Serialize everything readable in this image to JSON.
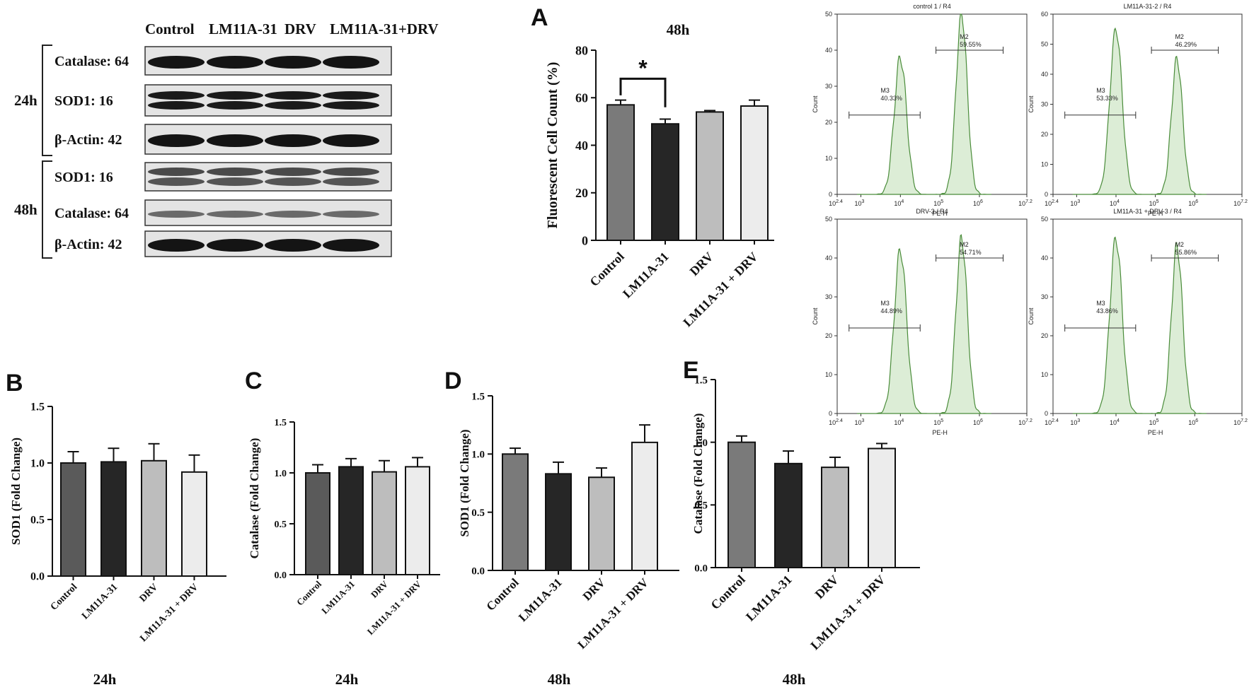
{
  "western_blot": {
    "lanes": [
      "Control",
      "LM11A-31",
      "DRV",
      "LM11A-31+DRV"
    ],
    "groups": [
      {
        "time": "24h",
        "blots": [
          {
            "label": "Catalase: 64",
            "bands": 1
          },
          {
            "label": "SOD1: 16",
            "bands": 2
          },
          {
            "label": "β-Actin: 42",
            "bands": 1
          }
        ]
      },
      {
        "time": "48h",
        "blots": [
          {
            "label": "SOD1: 16",
            "bands": 2
          },
          {
            "label": "Catalase: 64",
            "bands": 1
          },
          {
            "label": "β-Actin: 42",
            "bands": 1
          }
        ]
      }
    ]
  },
  "chart_data": [
    {
      "panel": "A",
      "type": "bar",
      "title": "48h",
      "xlabel": "",
      "ylabel": "Fluorescent Cell Count (%)",
      "categories": [
        "Control",
        "LM11A-31",
        "DRV",
        "LM11A-31 + DRV"
      ],
      "values": [
        57,
        49,
        54,
        56.5
      ],
      "errors": [
        2,
        2,
        0.6,
        2.5
      ],
      "ylim": [
        0,
        80
      ],
      "yticks": [
        0,
        20,
        40,
        60,
        80
      ],
      "tick_labels": [
        "0",
        "20",
        "40",
        "60",
        "80"
      ],
      "significance": {
        "from": 0,
        "to": 1,
        "label": "*"
      },
      "colors": [
        "#7a7a7a",
        "#262626",
        "#bdbdbd",
        "#ececec"
      ],
      "grid": false
    },
    {
      "panel": "B",
      "type": "bar",
      "title": "24h",
      "xlabel": "",
      "ylabel": "SOD1 (Fold Change)",
      "categories": [
        "Control",
        "LM11A-31",
        "DRV",
        "LM11A-31 + DRV"
      ],
      "values": [
        1.0,
        1.01,
        1.02,
        0.92
      ],
      "errors": [
        0.1,
        0.12,
        0.15,
        0.15
      ],
      "ylim": [
        0,
        1.5
      ],
      "yticks": [
        0,
        0.5,
        1.0,
        1.5
      ],
      "tick_labels": [
        "0.0",
        "0.5",
        "1.0",
        "1.5"
      ],
      "colors": [
        "#5a5a5a",
        "#262626",
        "#bdbdbd",
        "#ececec"
      ],
      "grid": false
    },
    {
      "panel": "C",
      "type": "bar",
      "title": "24h",
      "xlabel": "",
      "ylabel": "Catalase (Fold Change)",
      "categories": [
        "Control",
        "LM11A-31",
        "DRV",
        "LM11A-31 + DRV"
      ],
      "values": [
        1.0,
        1.06,
        1.01,
        1.06
      ],
      "errors": [
        0.08,
        0.08,
        0.11,
        0.09
      ],
      "ylim": [
        0,
        1.5
      ],
      "yticks": [
        0,
        0.5,
        1.0,
        1.5
      ],
      "tick_labels": [
        "0.0",
        "0.5",
        "1.0",
        "1.5"
      ],
      "colors": [
        "#5a5a5a",
        "#262626",
        "#bdbdbd",
        "#ececec"
      ],
      "grid": false
    },
    {
      "panel": "D",
      "type": "bar",
      "title": "48h",
      "xlabel": "",
      "ylabel": "SOD1 (Fold Change)",
      "categories": [
        "Control",
        "LM11A-31",
        "DRV",
        "LM11A-31 + DRV"
      ],
      "values": [
        1.0,
        0.83,
        0.8,
        1.1
      ],
      "errors": [
        0.05,
        0.1,
        0.08,
        0.15
      ],
      "ylim": [
        0,
        1.5
      ],
      "yticks": [
        0,
        0.5,
        1.0,
        1.5
      ],
      "tick_labels": [
        "0.0",
        "0.5",
        "1.0",
        "1.5"
      ],
      "colors": [
        "#7a7a7a",
        "#262626",
        "#bdbdbd",
        "#ececec"
      ],
      "grid": false
    },
    {
      "panel": "E",
      "type": "bar",
      "title": "48h",
      "xlabel": "",
      "ylabel": "Catalase (Fold Change)",
      "categories": [
        "Control",
        "LM11A-31",
        "DRV",
        "LM11A-31 + DRV"
      ],
      "values": [
        1.0,
        0.83,
        0.8,
        0.95
      ],
      "errors": [
        0.05,
        0.1,
        0.08,
        0.04
      ],
      "ylim": [
        0,
        1.5
      ],
      "yticks": [
        0,
        0.5,
        1.0,
        1.5
      ],
      "tick_labels": [
        "0.0",
        "0.5",
        "1.0",
        "1.5"
      ],
      "colors": [
        "#7a7a7a",
        "#262626",
        "#bdbdbd",
        "#ececec"
      ],
      "grid": false
    }
  ],
  "flow_cytometry": [
    {
      "title": "control 1 / R4",
      "m3": "40.33%",
      "m2": "59.55%",
      "m3_label": "M3",
      "m2_label": "M2",
      "xlabel": "PE-H",
      "ylabel": "Count",
      "ymax": 50,
      "yticks": [
        "0",
        "10",
        "20",
        "30",
        "40",
        "50"
      ],
      "peaks": [
        38,
        50
      ]
    },
    {
      "title": "LM11A-31-2 / R4",
      "m3": "53.33%",
      "m2": "46.29%",
      "m3_label": "M3",
      "m2_label": "M2",
      "xlabel": "PE-H",
      "ylabel": "Count",
      "ymax": 60,
      "yticks": [
        "0",
        "10",
        "20",
        "30",
        "40",
        "50",
        "60"
      ],
      "peaks": [
        55,
        45
      ]
    },
    {
      "title": "DRV-3 / R4",
      "m3": "44.89%",
      "m2": "54.71%",
      "m3_label": "M3",
      "m2_label": "M2",
      "xlabel": "PE-H",
      "ylabel": "Count",
      "ymax": 50,
      "yticks": [
        "0",
        "10",
        "20",
        "30",
        "40",
        "50"
      ],
      "peaks": [
        42,
        45
      ]
    },
    {
      "title": "LM11A-31 + DRV-3 / R4",
      "m3": "43.86%",
      "m2": "55.86%",
      "m3_label": "M3",
      "m2_label": "M2",
      "xlabel": "PE-H",
      "ylabel": "Count",
      "ymax": 50,
      "yticks": [
        "0",
        "10",
        "20",
        "30",
        "40",
        "50"
      ],
      "peaks": [
        45,
        43
      ]
    }
  ],
  "flow_xticks": [
    "10",
    "10",
    "10",
    "10",
    "10",
    "10"
  ],
  "flow_xtick_exps": [
    "2.4",
    "3",
    "4",
    "5",
    "6",
    "7.2"
  ]
}
